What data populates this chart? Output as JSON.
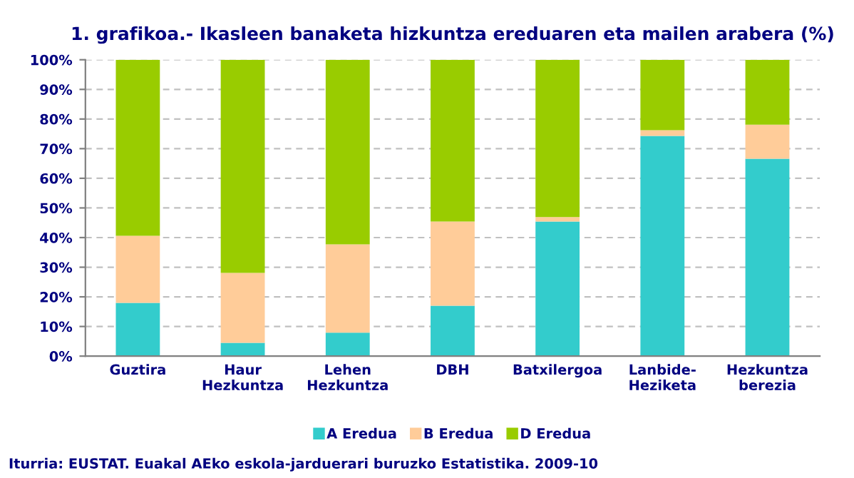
{
  "chart_data": {
    "type": "bar",
    "stacked": true,
    "title": "1. grafikoa.- Ikasleen banaketa hizkuntza ereduaren eta mailen arabera (%)",
    "categories": [
      "Guztira",
      "Haur\nHezkuntza",
      "Lehen\nHezkuntza",
      "DBH",
      "Batxilergoa",
      "Lanbide-\nHeziketa",
      "Hezkuntza\nberezia"
    ],
    "series": [
      {
        "name": "A Eredua",
        "color": "#33cccc",
        "values": [
          18.0,
          4.5,
          7.9,
          17.0,
          45.4,
          74.3,
          66.6
        ]
      },
      {
        "name": "B Eredua",
        "color": "#ffcc99",
        "values": [
          22.6,
          23.6,
          29.8,
          28.4,
          1.5,
          1.9,
          11.5
        ]
      },
      {
        "name": "D Eredua",
        "color": "#99cc00",
        "values": [
          59.4,
          71.9,
          62.3,
          54.6,
          53.1,
          23.8,
          21.9
        ]
      }
    ],
    "ylim": [
      0,
      100
    ],
    "yticks": [
      {
        "value": 0,
        "label": "0%"
      },
      {
        "value": 10,
        "label": "10%"
      },
      {
        "value": 20,
        "label": "20%"
      },
      {
        "value": 30,
        "label": "30%"
      },
      {
        "value": 40,
        "label": "40%"
      },
      {
        "value": 50,
        "label": "50%"
      },
      {
        "value": 60,
        "label": "60%"
      },
      {
        "value": 70,
        "label": "70%"
      },
      {
        "value": 80,
        "label": "80%"
      },
      {
        "value": 90,
        "label": "90%"
      },
      {
        "value": 100,
        "label": "100%"
      }
    ],
    "grid": "y",
    "legend": "bottom",
    "annotations": [
      "Iturria: EUSTAT. Euakal AEko eskola-jarduerari buruzko Estatistika. 2009-10"
    ]
  }
}
